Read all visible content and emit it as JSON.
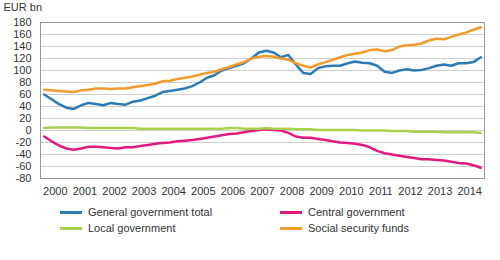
{
  "chart_data": {
    "type": "line",
    "y_label": "EUR bn",
    "x": [
      2000.125,
      2000.375,
      2000.625,
      2000.875,
      2001.125,
      2001.375,
      2001.625,
      2001.875,
      2002.125,
      2002.375,
      2002.625,
      2002.875,
      2003.125,
      2003.375,
      2003.625,
      2003.875,
      2004.125,
      2004.375,
      2004.625,
      2004.875,
      2005.125,
      2005.375,
      2005.625,
      2005.875,
      2006.125,
      2006.375,
      2006.625,
      2006.875,
      2007.125,
      2007.375,
      2007.625,
      2007.875,
      2008.125,
      2008.375,
      2008.625,
      2008.875,
      2009.125,
      2009.375,
      2009.625,
      2009.875,
      2010.125,
      2010.375,
      2010.625,
      2010.875,
      2011.125,
      2011.375,
      2011.625,
      2011.875,
      2012.125,
      2012.375,
      2012.625,
      2012.875,
      2013.125,
      2013.375,
      2013.625,
      2013.875,
      2014.125,
      2014.375,
      2014.625,
      2014.875
    ],
    "series": [
      {
        "name": "General government total",
        "color": "#2b7bb5",
        "values": [
          60,
          52,
          44,
          38,
          36,
          42,
          46,
          44,
          42,
          46,
          44,
          43,
          48,
          50,
          54,
          58,
          64,
          66,
          68,
          70,
          74,
          80,
          88,
          92,
          100,
          104,
          108,
          112,
          120,
          130,
          133,
          130,
          122,
          126,
          110,
          96,
          94,
          104,
          107,
          108,
          108,
          112,
          115,
          113,
          112,
          108,
          98,
          96,
          100,
          102,
          100,
          101,
          104,
          108,
          110,
          108,
          112,
          112,
          114,
          122
        ]
      },
      {
        "name": "Central government",
        "color": "#e2197f",
        "values": [
          -10,
          -18,
          -25,
          -30,
          -32,
          -30,
          -27,
          -27,
          -28,
          -29,
          -30,
          -28,
          -28,
          -26,
          -24,
          -22,
          -21,
          -20,
          -18,
          -17,
          -16,
          -14,
          -12,
          -10,
          -8,
          -6,
          -5,
          -3,
          -1,
          1,
          2,
          1,
          0,
          -4,
          -10,
          -12,
          -12,
          -14,
          -16,
          -18,
          -20,
          -21,
          -22,
          -24,
          -28,
          -34,
          -38,
          -40,
          -42,
          -44,
          -46,
          -48,
          -48,
          -49,
          -50,
          -52,
          -54,
          -55,
          -58,
          -62
        ]
      },
      {
        "name": "Local government",
        "color": "#a9d14c",
        "values": [
          4,
          5,
          5,
          5,
          5,
          5,
          4,
          4,
          4,
          4,
          4,
          4,
          4,
          3,
          3,
          3,
          3,
          3,
          3,
          3,
          3,
          3,
          3,
          3,
          3,
          4,
          4,
          3,
          3,
          3,
          4,
          3,
          3,
          3,
          2,
          2,
          2,
          1,
          1,
          1,
          1,
          1,
          1,
          0,
          0,
          0,
          0,
          -1,
          -1,
          -1,
          -2,
          -2,
          -2,
          -2,
          -3,
          -3,
          -3,
          -3,
          -3,
          -4
        ]
      },
      {
        "name": "Social security funds",
        "color": "#f49a2c",
        "values": [
          68,
          67,
          66,
          65,
          64,
          67,
          68,
          70,
          70,
          69,
          70,
          70,
          72,
          74,
          76,
          78,
          82,
          83,
          86,
          88,
          90,
          93,
          96,
          98,
          102,
          106,
          110,
          114,
          120,
          123,
          124,
          123,
          120,
          118,
          112,
          108,
          105,
          110,
          114,
          118,
          122,
          126,
          128,
          130,
          134,
          135,
          132,
          134,
          140,
          142,
          143,
          145,
          150,
          153,
          152,
          156,
          160,
          163,
          168,
          172
        ]
      }
    ],
    "xlim": [
      2000,
      2015
    ],
    "xticks": [
      {
        "value": 2000.5,
        "label": "2000"
      },
      {
        "value": 2001.5,
        "label": "2001"
      },
      {
        "value": 2002.5,
        "label": "2002"
      },
      {
        "value": 2003.5,
        "label": "2003"
      },
      {
        "value": 2004.5,
        "label": "2004"
      },
      {
        "value": 2005.5,
        "label": "2005"
      },
      {
        "value": 2006.5,
        "label": "2006"
      },
      {
        "value": 2007.5,
        "label": "2007"
      },
      {
        "value": 2008.5,
        "label": "2008"
      },
      {
        "value": 2009.5,
        "label": "2009"
      },
      {
        "value": 2010.5,
        "label": "2010"
      },
      {
        "value": 2011.5,
        "label": "2011"
      },
      {
        "value": 2012.5,
        "label": "2012"
      },
      {
        "value": 2013.5,
        "label": "2013"
      },
      {
        "value": 2014.5,
        "label": "2014"
      }
    ],
    "ylim": [
      -80,
      180
    ],
    "yticks": [
      -80,
      -60,
      -40,
      -20,
      0,
      20,
      40,
      60,
      80,
      100,
      120,
      140,
      160,
      180
    ],
    "grid": true,
    "legend": "bottom"
  }
}
